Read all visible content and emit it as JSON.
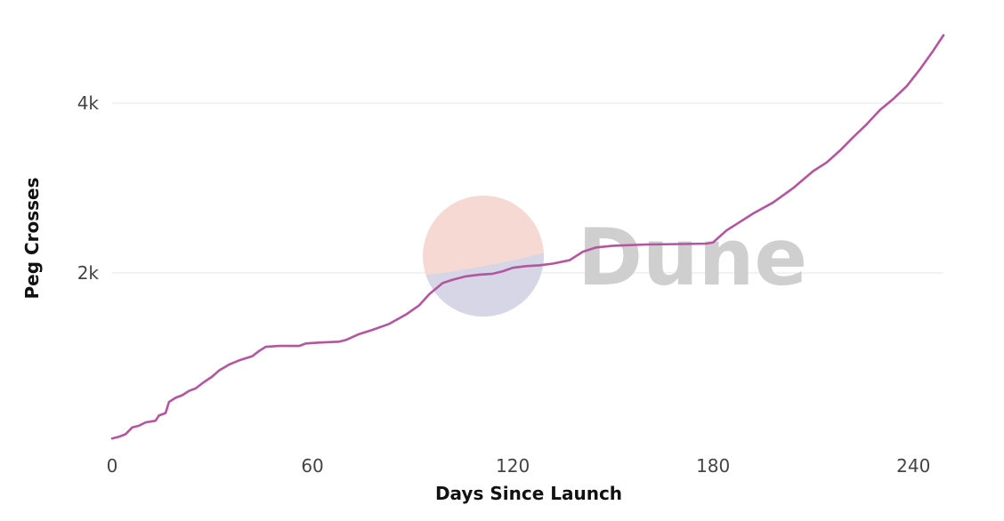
{
  "chart_data": {
    "type": "line",
    "title": "",
    "xlabel": "Days Since Launch",
    "ylabel": "Peg Crosses",
    "xlim": [
      0,
      249
    ],
    "ylim": [
      0,
      4900
    ],
    "x_ticks": [
      0,
      60,
      120,
      180,
      240
    ],
    "y_ticks": [
      2000,
      4000
    ],
    "x_tick_labels": [
      "0",
      "60",
      "120",
      "180",
      "240"
    ],
    "y_tick_labels": [
      "2k",
      "4k"
    ],
    "grid": true,
    "line_color": "#b4559f",
    "watermark": {
      "text": "Dune",
      "circle_top_color": "#f5d9d2",
      "circle_bottom_color": "#d6d6e6",
      "text_color": "#cfcfcf"
    },
    "series": [
      {
        "values": [
          [
            0,
            50
          ],
          [
            2,
            70
          ],
          [
            4,
            100
          ],
          [
            6,
            180
          ],
          [
            8,
            200
          ],
          [
            10,
            240
          ],
          [
            13,
            260
          ],
          [
            14,
            320
          ],
          [
            16,
            350
          ],
          [
            17,
            480
          ],
          [
            19,
            530
          ],
          [
            21,
            560
          ],
          [
            23,
            610
          ],
          [
            25,
            640
          ],
          [
            27,
            700
          ],
          [
            30,
            780
          ],
          [
            32,
            850
          ],
          [
            35,
            920
          ],
          [
            38,
            970
          ],
          [
            42,
            1020
          ],
          [
            44,
            1080
          ],
          [
            46,
            1130
          ],
          [
            50,
            1140
          ],
          [
            56,
            1140
          ],
          [
            58,
            1170
          ],
          [
            62,
            1180
          ],
          [
            68,
            1190
          ],
          [
            70,
            1210
          ],
          [
            74,
            1280
          ],
          [
            78,
            1330
          ],
          [
            83,
            1400
          ],
          [
            88,
            1510
          ],
          [
            92,
            1620
          ],
          [
            95,
            1750
          ],
          [
            99,
            1880
          ],
          [
            102,
            1920
          ],
          [
            106,
            1960
          ],
          [
            110,
            1980
          ],
          [
            114,
            1990
          ],
          [
            117,
            2020
          ],
          [
            120,
            2060
          ],
          [
            124,
            2080
          ],
          [
            128,
            2090
          ],
          [
            132,
            2110
          ],
          [
            137,
            2150
          ],
          [
            141,
            2250
          ],
          [
            145,
            2300
          ],
          [
            150,
            2320
          ],
          [
            160,
            2335
          ],
          [
            170,
            2340
          ],
          [
            178,
            2345
          ],
          [
            180,
            2360
          ],
          [
            184,
            2500
          ],
          [
            188,
            2600
          ],
          [
            192,
            2700
          ],
          [
            198,
            2830
          ],
          [
            204,
            3000
          ],
          [
            210,
            3200
          ],
          [
            214,
            3300
          ],
          [
            218,
            3440
          ],
          [
            222,
            3600
          ],
          [
            226,
            3750
          ],
          [
            230,
            3920
          ],
          [
            234,
            4050
          ],
          [
            238,
            4200
          ],
          [
            242,
            4400
          ],
          [
            246,
            4620
          ],
          [
            249,
            4800
          ]
        ]
      }
    ]
  }
}
